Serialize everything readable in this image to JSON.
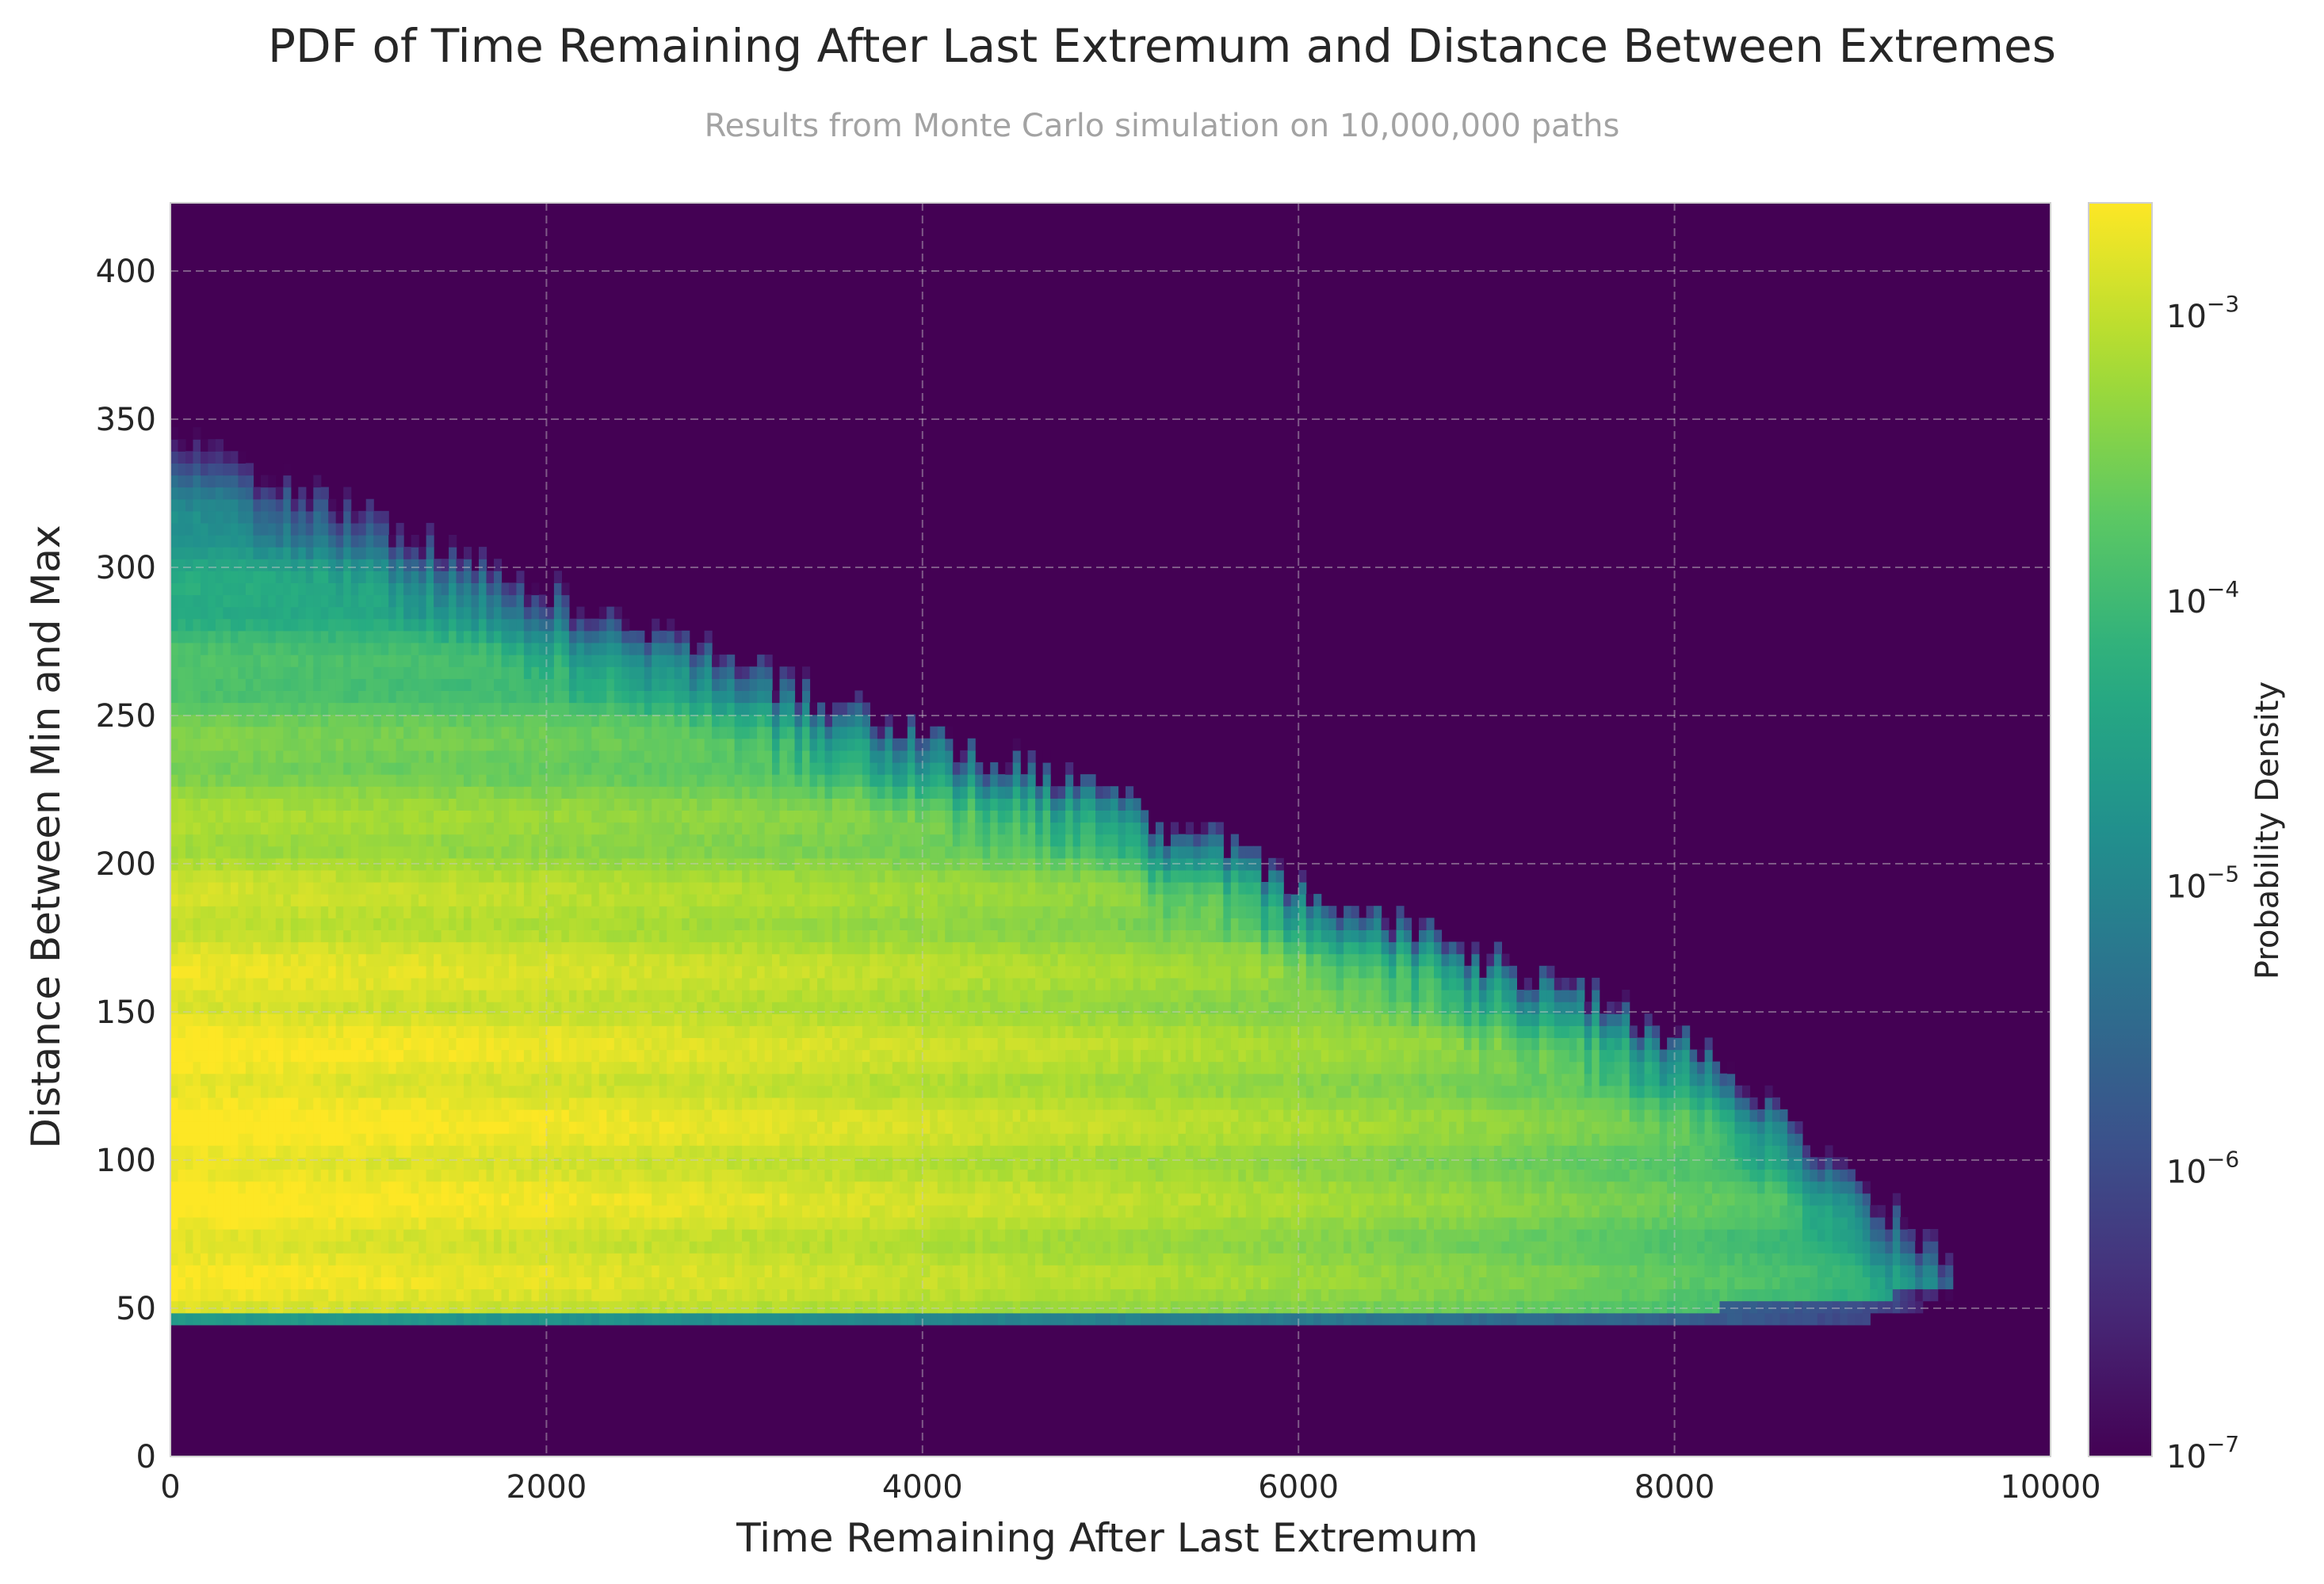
{
  "chart_data": {
    "type": "heatmap",
    "title": "PDF of Time Remaining After Last Extremum and Distance Between Extremes",
    "subtitle": "Results from Monte Carlo simulation on 10,000,000 paths",
    "xlabel": "Time Remaining After Last Extremum",
    "ylabel": "Distance Between Min and Max",
    "xlim": [
      0,
      10000
    ],
    "ylim": [
      0,
      423
    ],
    "xticks": [
      0,
      2000,
      4000,
      6000,
      8000,
      10000
    ],
    "xtick_labels": [
      "0",
      "2000",
      "4000",
      "6000",
      "8000",
      "10000"
    ],
    "yticks": [
      0,
      50,
      100,
      150,
      200,
      250,
      300,
      350,
      400
    ],
    "ytick_labels": [
      "0",
      "50",
      "100",
      "150",
      "200",
      "250",
      "300",
      "350",
      "400"
    ],
    "grid": true,
    "colormap": "viridis",
    "background_color": "#440154",
    "colorbar": {
      "label": "Probability Density",
      "scale": "log",
      "range": [
        1e-07,
        0.0025
      ],
      "ticks": [
        1e-07,
        1e-06,
        1e-05,
        0.0001,
        0.001
      ],
      "tick_bases": [
        "10",
        "10",
        "10",
        "10",
        "10"
      ],
      "tick_exponents": [
        "−7",
        "−6",
        "−5",
        "−4",
        "−3"
      ]
    },
    "density_envelope": {
      "description_points_x": [
        0,
        1000,
        2000,
        3000,
        4000,
        5000,
        6000,
        7000,
        8000,
        9000,
        9500
      ],
      "upper_distance": [
        350,
        325,
        295,
        270,
        245,
        225,
        195,
        170,
        145,
        95,
        65
      ],
      "lower_distance": [
        46,
        46,
        46,
        46,
        46,
        46,
        46,
        46,
        46,
        48,
        55
      ],
      "peak_distance": 105,
      "peak_density": 0.0025
    }
  }
}
